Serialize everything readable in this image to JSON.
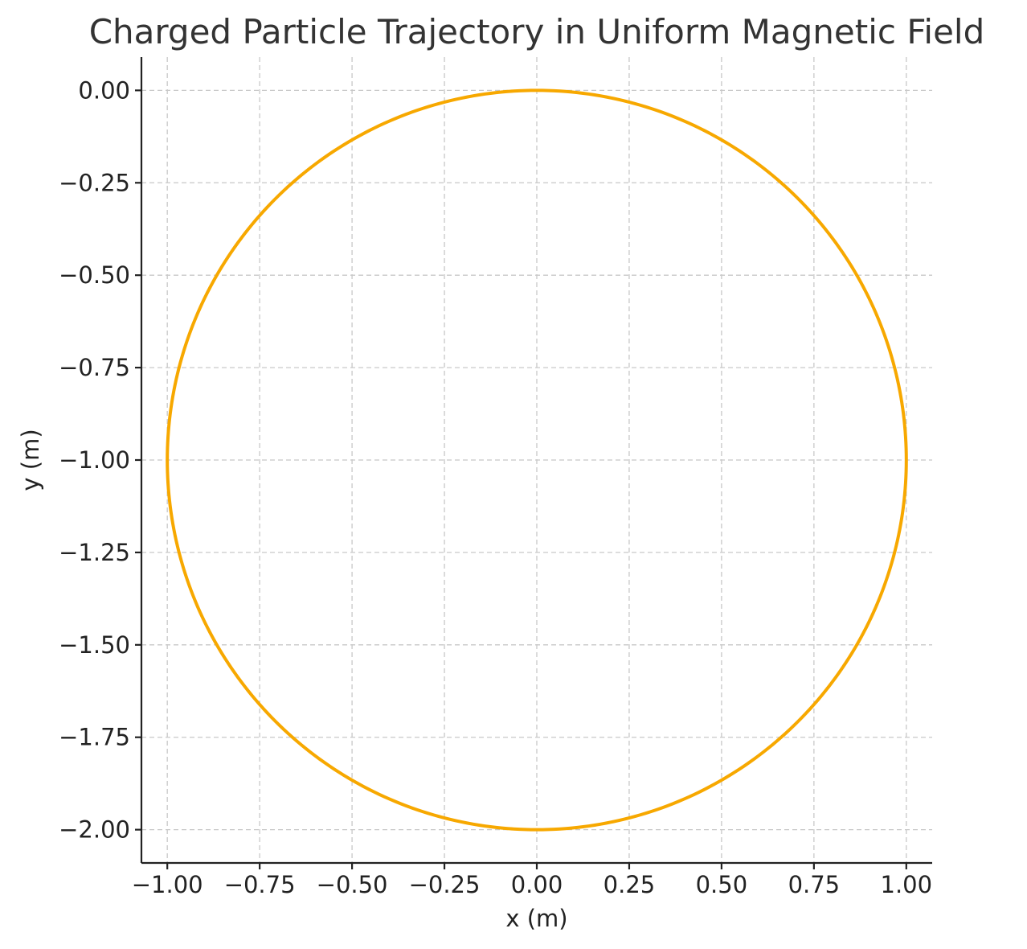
{
  "chart_data": {
    "type": "line",
    "title": "Charged Particle Trajectory in Uniform Magnetic Field",
    "xlabel": "x (m)",
    "ylabel": "y (m)",
    "xlim": [
      -1.07,
      1.07
    ],
    "ylim": [
      -2.09,
      0.09
    ],
    "xticks": [
      -1.0,
      -0.75,
      -0.5,
      -0.25,
      0.0,
      0.25,
      0.5,
      0.75,
      1.0
    ],
    "xtick_labels": [
      "−1.00",
      "−0.75",
      "−0.50",
      "−0.25",
      "0.00",
      "0.25",
      "0.50",
      "0.75",
      "1.00"
    ],
    "yticks": [
      0.0,
      -0.25,
      -0.5,
      -0.75,
      -1.0,
      -1.25,
      -1.5,
      -1.75,
      -2.0
    ],
    "ytick_labels": [
      "0.00",
      "−0.25",
      "−0.50",
      "−0.75",
      "−1.00",
      "−1.25",
      "−1.50",
      "−1.75",
      "−2.00"
    ],
    "grid": true,
    "grid_style": "dashed",
    "series": [
      {
        "color": "#F7A800",
        "shape": "circle",
        "center": [
          0.0,
          -1.0
        ],
        "radius": 1.0,
        "x_range": [
          -1.0,
          1.0
        ],
        "y_range": [
          -2.0,
          0.0
        ]
      }
    ]
  }
}
